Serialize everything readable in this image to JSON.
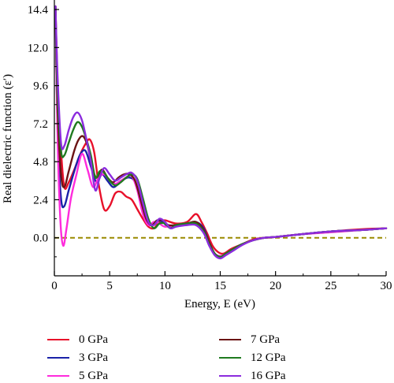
{
  "chart_data": {
    "type": "line",
    "xlabel": "Energy, E (eV)",
    "ylabel": "Real dielectric function (ε′)",
    "xlim": [
      0,
      30
    ],
    "ylim": [
      -2.4,
      15.0
    ],
    "xticks": [
      0,
      5,
      10,
      15,
      20,
      25,
      30
    ],
    "yticks": [
      0.0,
      2.4,
      4.8,
      7.2,
      9.6,
      12.0,
      14.4
    ],
    "ytick_labels": [
      "0.0",
      "2.4",
      "4.8",
      "7.2",
      "9.6",
      "12.0",
      "14.4"
    ],
    "reference_line": {
      "y": 0,
      "style": "dashed",
      "color": "#9a8a00"
    },
    "legend_position": "below",
    "series": [
      {
        "name": "0 GPa",
        "color": "#e8102a",
        "x": [
          0.1,
          0.3,
          0.6,
          0.9,
          1.3,
          1.8,
          2.3,
          2.8,
          3.2,
          3.6,
          4.0,
          4.5,
          5.0,
          5.5,
          6.0,
          6.5,
          7.0,
          7.5,
          8.0,
          8.5,
          9.0,
          9.5,
          10.0,
          11.0,
          12.0,
          12.8,
          13.3,
          13.8,
          14.3,
          14.8,
          15.3,
          16.0,
          17.0,
          18.0,
          19.0,
          20.0,
          22.0,
          25.0,
          28.0,
          30.0
        ],
        "y": [
          14.6,
          9.5,
          5.5,
          3.2,
          3.5,
          4.3,
          5.2,
          5.9,
          6.2,
          5.4,
          3.4,
          1.8,
          2.0,
          2.8,
          2.9,
          2.6,
          2.4,
          1.8,
          1.2,
          0.7,
          0.6,
          1.0,
          1.1,
          0.9,
          1.0,
          1.5,
          1.0,
          0.3,
          -0.5,
          -0.9,
          -1.0,
          -0.7,
          -0.4,
          -0.1,
          0.0,
          0.05,
          0.2,
          0.4,
          0.55,
          0.6
        ]
      },
      {
        "name": "3 GPa",
        "color": "#1a22a8",
        "x": [
          0.1,
          0.3,
          0.6,
          0.9,
          1.3,
          1.8,
          2.3,
          2.8,
          3.3,
          3.8,
          4.3,
          4.8,
          5.3,
          5.8,
          6.3,
          6.8,
          7.3,
          7.8,
          8.3,
          8.8,
          9.3,
          9.8,
          10.3,
          11.0,
          12.0,
          12.8,
          13.5,
          14.0,
          14.5,
          15.0,
          15.5,
          16.2,
          17.0,
          18.0,
          19.0,
          20.0,
          22.0,
          25.0,
          28.0,
          30.0
        ],
        "y": [
          14.6,
          6.5,
          2.5,
          2.0,
          3.0,
          4.2,
          5.2,
          5.5,
          4.5,
          3.5,
          4.0,
          3.6,
          3.2,
          3.4,
          3.7,
          3.8,
          3.5,
          2.2,
          1.0,
          0.8,
          1.1,
          1.0,
          0.7,
          0.8,
          0.9,
          1.0,
          0.6,
          -0.3,
          -1.0,
          -1.2,
          -1.0,
          -0.7,
          -0.4,
          -0.15,
          0.0,
          0.05,
          0.2,
          0.4,
          0.5,
          0.6
        ]
      },
      {
        "name": "5 GPa",
        "color": "#ff2bdc",
        "x": [
          0.1,
          0.3,
          0.55,
          0.8,
          1.1,
          1.5,
          2.0,
          2.5,
          3.0,
          3.5,
          4.0,
          4.5,
          5.0,
          5.5,
          6.0,
          6.5,
          7.0,
          7.5,
          8.0,
          8.5,
          9.0,
          9.5,
          10.0,
          11.0,
          12.0,
          12.8,
          13.5,
          14.0,
          14.5,
          15.0,
          15.5,
          16.2,
          17.0,
          18.0,
          19.0,
          20.0,
          22.0,
          25.0,
          28.0,
          30.0
        ],
        "y": [
          14.6,
          6.0,
          1.0,
          -0.5,
          0.6,
          2.5,
          4.0,
          5.3,
          4.3,
          3.2,
          3.8,
          4.0,
          3.6,
          3.4,
          3.6,
          3.8,
          3.9,
          3.0,
          1.5,
          0.8,
          1.0,
          0.9,
          0.7,
          0.8,
          0.9,
          0.9,
          0.5,
          -0.4,
          -1.0,
          -1.15,
          -1.0,
          -0.7,
          -0.4,
          -0.15,
          0.0,
          0.05,
          0.2,
          0.35,
          0.5,
          0.6
        ]
      },
      {
        "name": "7 GPa",
        "color": "#6b1414",
        "x": [
          0.1,
          0.3,
          0.6,
          0.9,
          1.3,
          1.8,
          2.2,
          2.6,
          3.0,
          3.4,
          3.8,
          4.3,
          4.8,
          5.3,
          5.8,
          6.3,
          6.8,
          7.3,
          7.8,
          8.3,
          8.8,
          9.3,
          9.8,
          10.3,
          11.0,
          12.0,
          12.8,
          13.5,
          14.0,
          14.5,
          15.0,
          15.5,
          16.2,
          17.0,
          18.0,
          19.0,
          20.0,
          22.0,
          25.0,
          28.0,
          30.0
        ],
        "y": [
          14.6,
          8.0,
          4.0,
          3.2,
          4.2,
          5.5,
          6.2,
          6.4,
          5.8,
          4.5,
          3.8,
          4.3,
          3.8,
          3.5,
          3.8,
          4.0,
          4.0,
          3.6,
          2.4,
          1.2,
          0.8,
          1.1,
          1.1,
          0.8,
          0.8,
          0.9,
          1.0,
          0.5,
          -0.3,
          -1.0,
          -1.2,
          -1.0,
          -0.7,
          -0.4,
          -0.15,
          0.0,
          0.05,
          0.2,
          0.4,
          0.5,
          0.6
        ]
      },
      {
        "name": "12 GPa",
        "color": "#1f7a1f",
        "x": [
          0.1,
          0.3,
          0.6,
          0.9,
          1.3,
          1.7,
          2.1,
          2.5,
          2.9,
          3.3,
          3.7,
          4.1,
          4.5,
          5.0,
          5.5,
          6.0,
          6.5,
          7.0,
          7.5,
          8.0,
          8.5,
          9.0,
          9.5,
          10.0,
          10.5,
          11.0,
          12.0,
          12.8,
          13.5,
          14.0,
          14.5,
          15.0,
          15.5,
          16.2,
          17.0,
          18.0,
          19.0,
          20.0,
          22.0,
          25.0,
          28.0,
          30.0
        ],
        "y": [
          14.6,
          9.0,
          5.5,
          5.2,
          6.0,
          6.8,
          7.3,
          7.0,
          6.2,
          5.2,
          3.8,
          4.2,
          4.1,
          3.6,
          3.3,
          3.5,
          3.8,
          4.0,
          3.7,
          2.5,
          1.2,
          0.6,
          0.9,
          0.9,
          0.6,
          0.8,
          0.9,
          0.9,
          0.4,
          -0.4,
          -1.0,
          -1.2,
          -1.0,
          -0.7,
          -0.4,
          -0.15,
          0.0,
          0.05,
          0.2,
          0.4,
          0.5,
          0.6
        ]
      },
      {
        "name": "16 GPa",
        "color": "#8b2bdd",
        "x": [
          0.1,
          0.3,
          0.6,
          0.9,
          1.3,
          1.7,
          2.1,
          2.5,
          2.9,
          3.3,
          3.7,
          4.1,
          4.5,
          5.0,
          5.5,
          6.0,
          6.5,
          7.0,
          7.5,
          8.0,
          8.5,
          9.0,
          9.5,
          10.0,
          10.5,
          11.0,
          12.0,
          12.8,
          13.5,
          14.0,
          14.5,
          15.0,
          15.5,
          16.2,
          17.0,
          18.0,
          19.0,
          20.0,
          22.0,
          25.0,
          28.0,
          30.0
        ],
        "y": [
          14.6,
          10.0,
          6.0,
          5.8,
          6.8,
          7.6,
          7.9,
          7.4,
          6.2,
          4.8,
          3.0,
          3.8,
          4.4,
          4.0,
          3.6,
          3.8,
          4.0,
          4.1,
          3.6,
          2.2,
          1.0,
          0.8,
          1.2,
          1.0,
          0.6,
          0.7,
          0.8,
          0.8,
          0.3,
          -0.5,
          -1.1,
          -1.3,
          -1.1,
          -0.8,
          -0.45,
          -0.15,
          0.0,
          0.05,
          0.2,
          0.4,
          0.5,
          0.6
        ]
      }
    ]
  }
}
